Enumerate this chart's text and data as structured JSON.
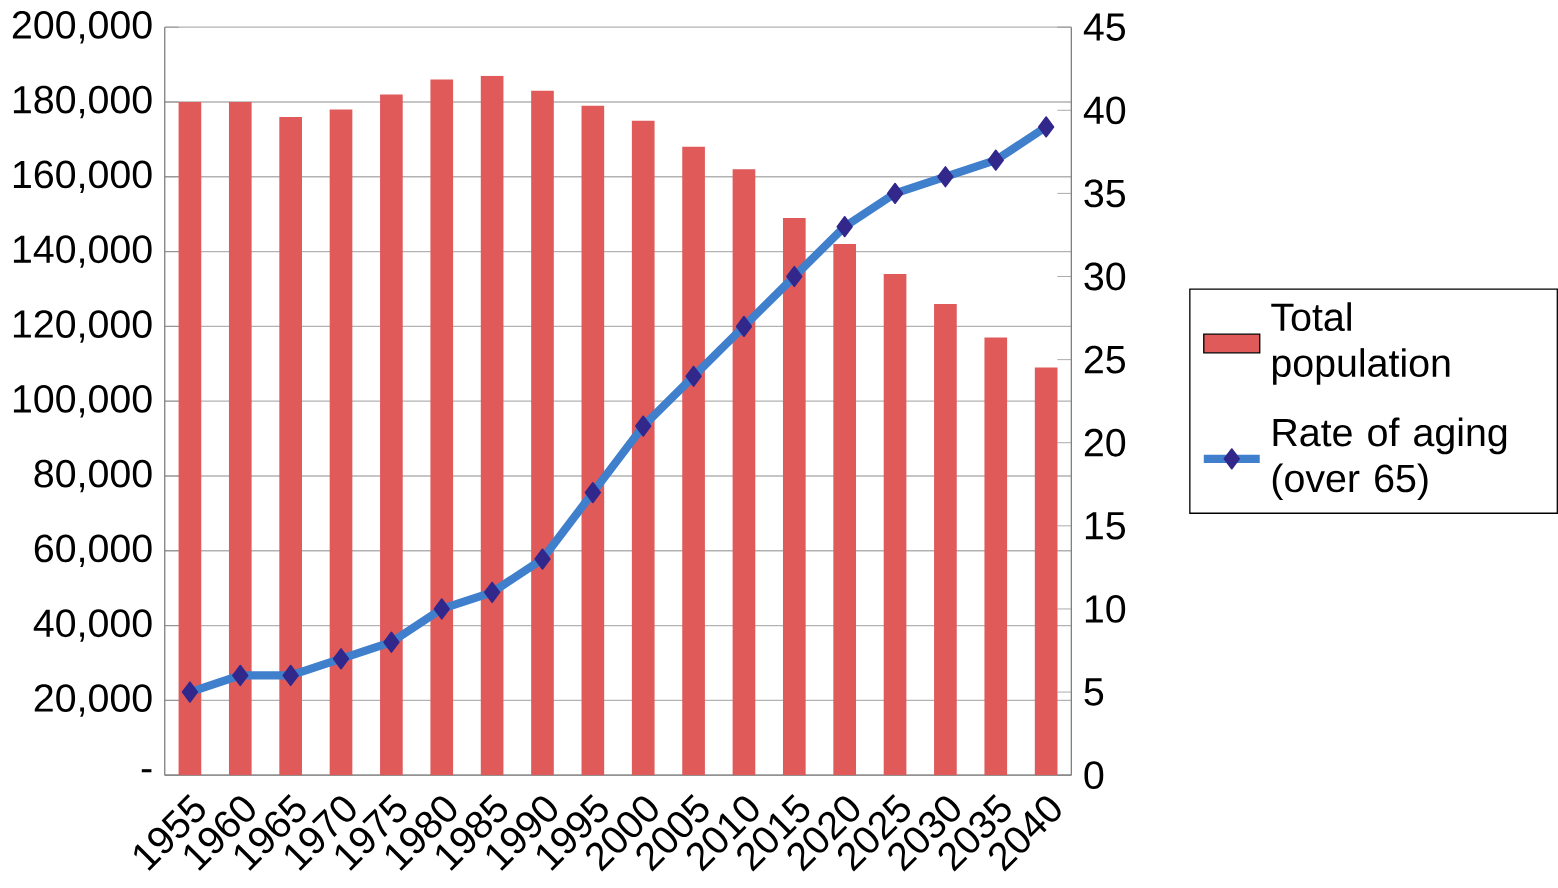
{
  "chart_data": {
    "type": "bar",
    "categories": [
      "1955",
      "1960",
      "1965",
      "1970",
      "1975",
      "1980",
      "1985",
      "1990",
      "1995",
      "2000",
      "2005",
      "2010",
      "2015",
      "2020",
      "2025",
      "2030",
      "2035",
      "2040"
    ],
    "series": [
      {
        "name": "Total population",
        "type": "bar",
        "color": "#e05a5a",
        "values": [
          180000,
          180000,
          176000,
          178000,
          182000,
          186000,
          187000,
          183000,
          179000,
          175000,
          168000,
          162000,
          149000,
          142000,
          134000,
          126000,
          117000,
          109000
        ]
      },
      {
        "name": "Rate of aging (over 65)",
        "type": "line",
        "axis": "y2",
        "color": "#3f7fcc",
        "marker": "diamond",
        "values": [
          5,
          6,
          6,
          7,
          8,
          10,
          11,
          13,
          17,
          21,
          24,
          27,
          30,
          33,
          35,
          36,
          37,
          39
        ]
      }
    ],
    "ylim": [
      0,
      200000
    ],
    "yticks": [
      {
        "value": 0,
        "label": "-"
      },
      {
        "value": 20000,
        "label": "20,000"
      },
      {
        "value": 40000,
        "label": "40,000"
      },
      {
        "value": 60000,
        "label": "60,000"
      },
      {
        "value": 80000,
        "label": "80,000"
      },
      {
        "value": 100000,
        "label": "100,000"
      },
      {
        "value": 120000,
        "label": "120,000"
      },
      {
        "value": 140000,
        "label": "140,000"
      },
      {
        "value": 160000,
        "label": "160,000"
      },
      {
        "value": 180000,
        "label": "180,000"
      },
      {
        "value": 200000,
        "label": "200,000"
      }
    ],
    "y2lim": [
      0,
      45
    ],
    "y2ticks": [
      0,
      5,
      10,
      15,
      20,
      25,
      30,
      35,
      40,
      45
    ],
    "grid": "y",
    "legend": "right"
  }
}
